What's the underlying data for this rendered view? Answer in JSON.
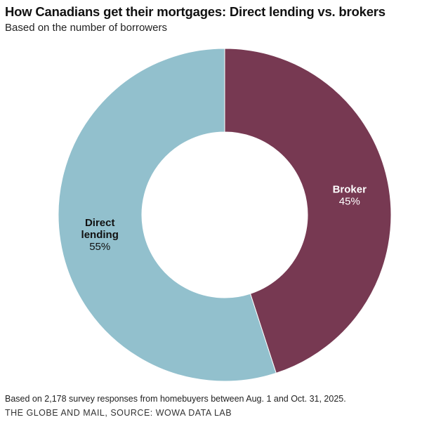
{
  "header": {
    "title": "How Canadians get their mortgages: Direct lending vs. brokers",
    "subtitle": "Based on the number of borrowers"
  },
  "footer": {
    "note": "Based on 2,178 survey responses from homebuyers between Aug. 1 and Oct. 31, 2025.",
    "source": "THE GLOBE AND MAIL, SOURCE: WOWA DATA LAB"
  },
  "chart_data": {
    "type": "pie",
    "variant": "donut",
    "title": "How Canadians get their mortgages: Direct lending vs. brokers",
    "subtitle": "Based on the number of borrowers",
    "unit": "%",
    "slices": [
      {
        "label": "Broker",
        "label_lines": [
          "Broker"
        ],
        "value": 45,
        "value_label": "45%",
        "color": "#773952",
        "label_color": "#ffffff"
      },
      {
        "label": "Direct lending",
        "label_lines": [
          "Direct",
          "lending"
        ],
        "value": 55,
        "value_label": "55%",
        "color": "#92c0cd",
        "label_color": "#111111"
      }
    ],
    "legend": "none"
  }
}
